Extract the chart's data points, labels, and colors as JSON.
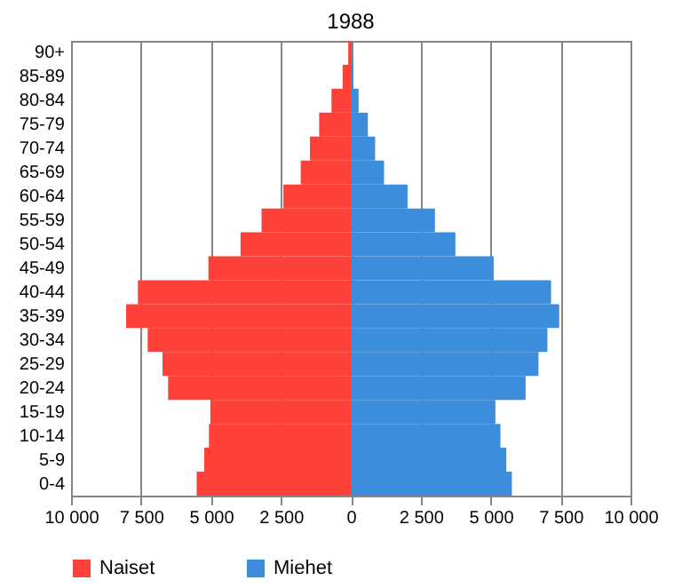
{
  "chart_data": {
    "type": "bar",
    "orientation": "horizontal",
    "title": "1988",
    "categories": [
      "90+",
      "85-89",
      "80-84",
      "75-79",
      "70-74",
      "65-69",
      "60-64",
      "55-59",
      "50-54",
      "45-49",
      "40-44",
      "35-39",
      "30-34",
      "25-29",
      "20-24",
      "15-19",
      "10-14",
      "5-9",
      "0-4"
    ],
    "series": [
      {
        "name": "Naiset",
        "color": "#fe4138",
        "values": [
          -90,
          -290,
          -690,
          -1130,
          -1460,
          -1790,
          -2410,
          -3190,
          -3940,
          -5090,
          -7610,
          -8030,
          -7260,
          -6730,
          -6530,
          -5020,
          -5070,
          -5240,
          -5510
        ]
      },
      {
        "name": "Miehet",
        "color": "#3c8ddc",
        "values": [
          40,
          90,
          280,
          610,
          870,
          1190,
          2030,
          3010,
          3740,
          5110,
          7160,
          7450,
          7030,
          6710,
          6250,
          5170,
          5350,
          5560,
          5760
        ]
      }
    ],
    "xlim": [
      -10000,
      10000
    ],
    "xticks": [
      {
        "value": -10000,
        "label": "10 000"
      },
      {
        "value": -7500,
        "label": "7 500"
      },
      {
        "value": -5000,
        "label": "5 000"
      },
      {
        "value": -2500,
        "label": "2 500"
      },
      0,
      {
        "value": 2500,
        "label": "2 500"
      },
      {
        "value": 5000,
        "label": "5 000"
      },
      {
        "value": 7500,
        "label": "7 500"
      },
      {
        "value": 10000,
        "label": "10 000"
      }
    ],
    "grid": "x",
    "legend": "bottom",
    "stacked": true
  }
}
